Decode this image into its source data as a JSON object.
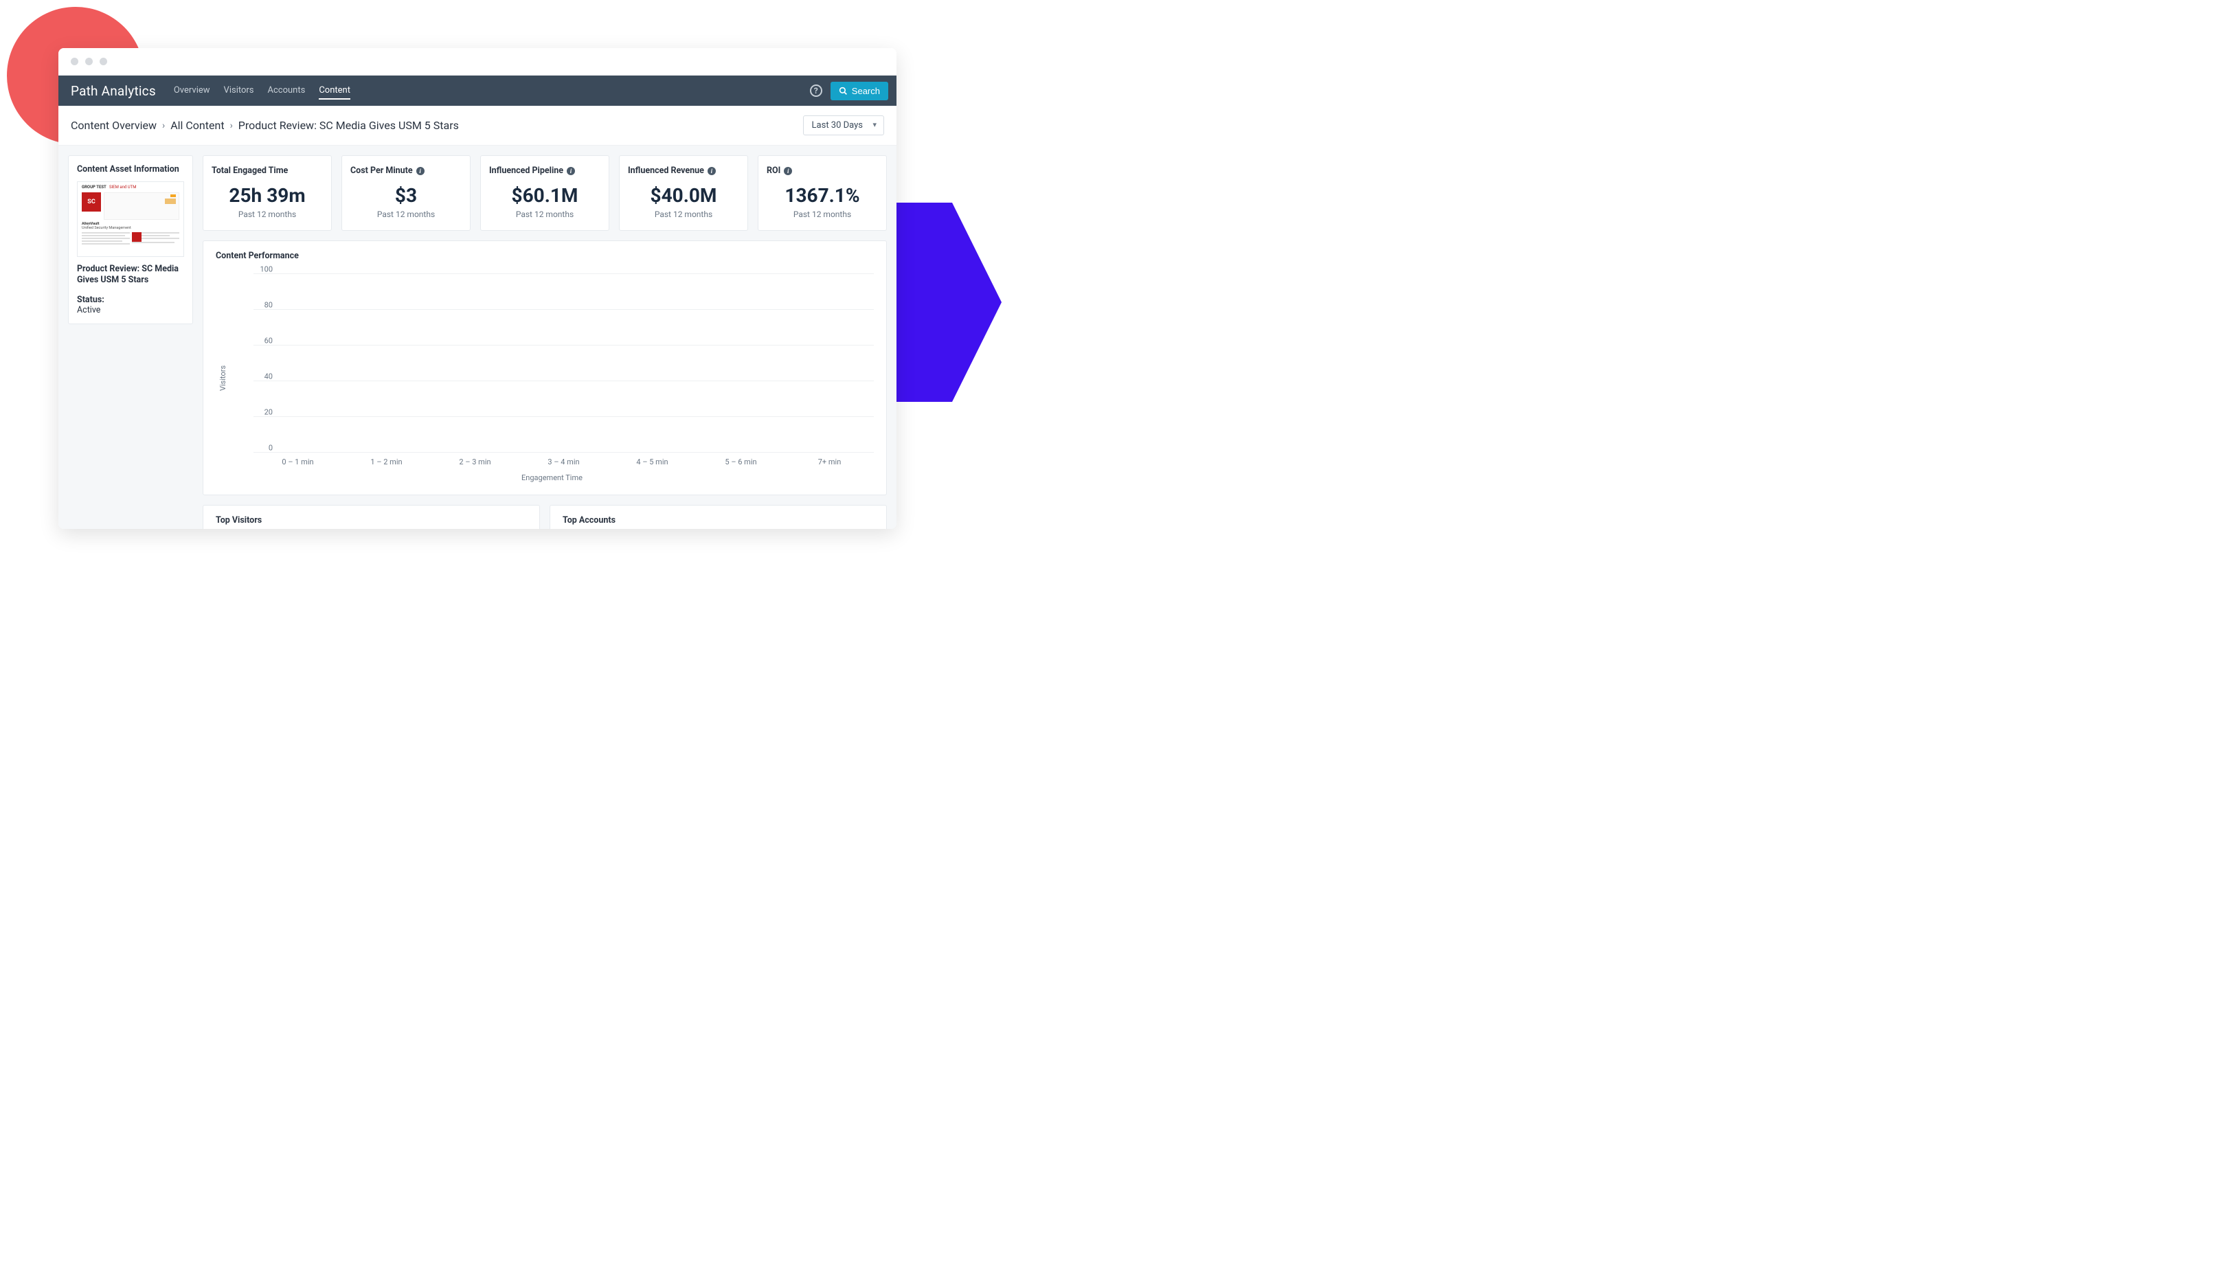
{
  "decor": {
    "circle_color": "#f05a5b",
    "hex_color": "#4011ef"
  },
  "topnav": {
    "brand": "Path Analytics",
    "links": [
      "Overview",
      "Visitors",
      "Accounts",
      "Content"
    ],
    "active_index": 3,
    "search_label": "Search",
    "bg_color": "#3b4a5a",
    "search_bg": "#15a2c9"
  },
  "breadcrumb": {
    "items": [
      "Content Overview",
      "All Content",
      "Product Review: SC Media Gives USM 5 Stars"
    ],
    "date_range": "Last 30 Days"
  },
  "asset": {
    "panel_title": "Content Asset Information",
    "title": "Product Review: SC Media Gives USM 5 Stars",
    "status_label": "Status:",
    "status_value": "Active",
    "thumb": {
      "header_text": "GROUP TEST",
      "header_accent": "SIEM and UTM",
      "badge_bg": "#c11c1c",
      "badge_text": "SC",
      "sub1": "AlienVault",
      "sub2": "Unified Security Management"
    }
  },
  "metrics": [
    {
      "label": "Total Engaged Time",
      "info": false,
      "value": "25h 39m",
      "sub": "Past 12 months"
    },
    {
      "label": "Cost Per Minute",
      "info": true,
      "value": "$3",
      "sub": "Past 12 months"
    },
    {
      "label": "Influenced Pipeline",
      "info": true,
      "value": "$60.1M",
      "sub": "Past 12 months"
    },
    {
      "label": "Influenced Revenue",
      "info": true,
      "value": "$40.0M",
      "sub": "Past 12 months"
    },
    {
      "label": "ROI",
      "info": true,
      "value": "1367.1%",
      "sub": "Past 12 months"
    }
  ],
  "chart": {
    "title": "Content Performance",
    "type": "bar",
    "y_label": "Visitors",
    "x_label": "Engagement Time",
    "y_ticks": [
      0,
      20,
      40,
      60,
      80,
      100
    ],
    "ylim": [
      0,
      100
    ],
    "x_categories": [
      "0 – 1 min",
      "1 – 2 min",
      "2 – 3 min",
      "3 – 4 min",
      "4 – 5 min",
      "5 – 6 min",
      "7+ min"
    ],
    "values": [
      0,
      0,
      0,
      0,
      0,
      0,
      0
    ],
    "grid_color": "#eef0f2",
    "tick_color": "#6b7785",
    "tick_fontsize": 11,
    "background_color": "#ffffff"
  },
  "bottom_panels": {
    "left_title": "Top Visitors",
    "right_title": "Top Accounts"
  },
  "body_bg": "#f5f7f9"
}
